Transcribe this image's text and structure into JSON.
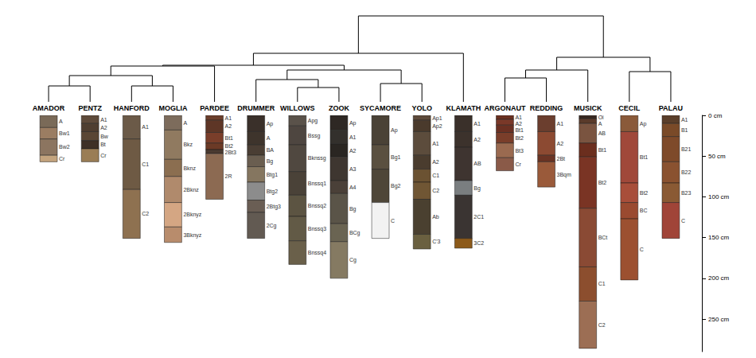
{
  "chart_data": {
    "type": "soil_profiles",
    "ylim": [
      0,
      290
    ],
    "yticks": [
      {
        "value": 0,
        "label": "0 cm"
      },
      {
        "value": 50,
        "label": "50 cm"
      },
      {
        "value": 100,
        "label": "100 cm"
      },
      {
        "value": 150,
        "label": "150 cm"
      },
      {
        "value": 200,
        "label": "200 cm"
      },
      {
        "value": 250,
        "label": "250 cm"
      }
    ],
    "profiles": [
      {
        "name": "AMADOR",
        "horizons": [
          {
            "name": "A",
            "top": 0,
            "bottom": 15,
            "color": "#7a6a58"
          },
          {
            "name": "Bw1",
            "top": 15,
            "bottom": 29,
            "color": "#9b7d62"
          },
          {
            "name": "Bw2",
            "top": 29,
            "bottom": 49,
            "color": "#8c7560"
          },
          {
            "name": "Cr",
            "top": 49,
            "bottom": 57,
            "color": "#c4a47e"
          }
        ]
      },
      {
        "name": "PENTZ",
        "horizons": [
          {
            "name": "A1",
            "top": 0,
            "bottom": 10,
            "color": "#5e4a3a"
          },
          {
            "name": "A2",
            "top": 10,
            "bottom": 20,
            "color": "#4f3e30"
          },
          {
            "name": "Bw",
            "top": 20,
            "bottom": 31,
            "color": "#5a4634"
          },
          {
            "name": "Bt",
            "top": 31,
            "bottom": 41,
            "color": "#3e3026"
          },
          {
            "name": "Cr",
            "top": 41,
            "bottom": 57,
            "color": "#9a7d55"
          }
        ]
      },
      {
        "name": "HANFORD",
        "horizons": [
          {
            "name": "A1",
            "top": 0,
            "bottom": 29,
            "color": "#6b5a48"
          },
          {
            "name": "C1",
            "top": 29,
            "bottom": 91,
            "color": "#6e5a44"
          },
          {
            "name": "C2",
            "top": 91,
            "bottom": 151,
            "color": "#8e7150"
          }
        ]
      },
      {
        "name": "MOGLIA",
        "horizons": [
          {
            "name": "A",
            "top": 0,
            "bottom": 18,
            "color": "#7d6c5c"
          },
          {
            "name": "Bkz",
            "top": 18,
            "bottom": 54,
            "color": "#907a60"
          },
          {
            "name": "Bknz",
            "top": 54,
            "bottom": 75,
            "color": "#8b6e50"
          },
          {
            "name": "2Bknz",
            "top": 75,
            "bottom": 107,
            "color": "#b08a6c"
          },
          {
            "name": "2Bknyz",
            "top": 107,
            "bottom": 137,
            "color": "#d4a683"
          },
          {
            "name": "3Bknyz",
            "top": 137,
            "bottom": 156,
            "color": "#b88c6c"
          }
        ]
      },
      {
        "name": "PARDEE",
        "horizons": [
          {
            "name": "A1",
            "top": 0,
            "bottom": 6,
            "color": "#6b3e2b"
          },
          {
            "name": "A2",
            "top": 6,
            "bottom": 21,
            "color": "#5e3626"
          },
          {
            "name": "Bt1",
            "top": 21,
            "bottom": 34,
            "color": "#7a3e2a"
          },
          {
            "name": "Bt2",
            "top": 34,
            "bottom": 42,
            "color": "#6b3a26"
          },
          {
            "name": "2Bt3",
            "top": 42,
            "bottom": 47,
            "color": "#4a3a30"
          },
          {
            "name": "2R",
            "top": 47,
            "bottom": 103,
            "color": "#8c6a52"
          }
        ]
      },
      {
        "name": "DRUMMER",
        "horizons": [
          {
            "name": "Ap",
            "top": 0,
            "bottom": 20,
            "color": "#3a302a"
          },
          {
            "name": "A",
            "top": 20,
            "bottom": 36,
            "color": "#3e342c"
          },
          {
            "name": "BA",
            "top": 36,
            "bottom": 49,
            "color": "#4a3e34"
          },
          {
            "name": "Bg",
            "top": 49,
            "bottom": 63,
            "color": "#6a5e50"
          },
          {
            "name": "Btg1",
            "top": 63,
            "bottom": 82,
            "color": "#857660"
          },
          {
            "name": "Btg2",
            "top": 82,
            "bottom": 104,
            "color": "#8c8c8c"
          },
          {
            "name": "2Btg3",
            "top": 104,
            "bottom": 119,
            "color": "#6a5e54"
          },
          {
            "name": "2Cg",
            "top": 119,
            "bottom": 151,
            "color": "#625a52"
          }
        ]
      },
      {
        "name": "WILLOWS",
        "horizons": [
          {
            "name": "Apg",
            "top": 0,
            "bottom": 13,
            "color": "#5a524a"
          },
          {
            "name": "Bssg",
            "top": 13,
            "bottom": 36,
            "color": "#4e4640"
          },
          {
            "name": "Bknssg",
            "top": 36,
            "bottom": 69,
            "color": "#504840"
          },
          {
            "name": "Bnssq1",
            "top": 69,
            "bottom": 98,
            "color": "#4a4238"
          },
          {
            "name": "Bnssq2",
            "top": 98,
            "bottom": 124,
            "color": "#5c5442"
          },
          {
            "name": "Bnssq3",
            "top": 124,
            "bottom": 154,
            "color": "#625a46"
          },
          {
            "name": "Bnssq4",
            "top": 154,
            "bottom": 183,
            "color": "#6a604a"
          }
        ]
      },
      {
        "name": "ZOOK",
        "horizons": [
          {
            "name": "Ap",
            "top": 0,
            "bottom": 18,
            "color": "#2e2824"
          },
          {
            "name": "A1",
            "top": 18,
            "bottom": 35,
            "color": "#33302c"
          },
          {
            "name": "A2",
            "top": 35,
            "bottom": 51,
            "color": "#2a2622"
          },
          {
            "name": "A3",
            "top": 51,
            "bottom": 80,
            "color": "#3e3630"
          },
          {
            "name": "A4",
            "top": 80,
            "bottom": 96,
            "color": "#4a4038"
          },
          {
            "name": "Bg",
            "top": 96,
            "bottom": 133,
            "color": "#5a5448"
          },
          {
            "name": "BCg",
            "top": 133,
            "bottom": 155,
            "color": "#6a6452"
          },
          {
            "name": "Cg",
            "top": 155,
            "bottom": 200,
            "color": "#857a62"
          }
        ]
      },
      {
        "name": "SYCAMORE",
        "horizons": [
          {
            "name": "Ap",
            "top": 0,
            "bottom": 36,
            "color": "#4a4236"
          },
          {
            "name": "Bg1",
            "top": 36,
            "bottom": 66,
            "color": "#5a5040"
          },
          {
            "name": "Bg2",
            "top": 66,
            "bottom": 107,
            "color": "#4e4638"
          },
          {
            "name": "C",
            "top": 107,
            "bottom": 151,
            "color": "#f2f2f2"
          }
        ]
      },
      {
        "name": "YOLO",
        "horizons": [
          {
            "name": "Ap1",
            "top": 0,
            "bottom": 6,
            "color": "#5e4a3a"
          },
          {
            "name": "Ap2",
            "top": 6,
            "bottom": 20,
            "color": "#4a3a2c"
          },
          {
            "name": "A1",
            "top": 20,
            "bottom": 49,
            "color": "#5c4c3c"
          },
          {
            "name": "A2",
            "top": 49,
            "bottom": 66,
            "color": "#4a3c2e"
          },
          {
            "name": "C1",
            "top": 66,
            "bottom": 82,
            "color": "#6b5232"
          },
          {
            "name": "C2",
            "top": 82,
            "bottom": 103,
            "color": "#705634"
          },
          {
            "name": "Ab",
            "top": 103,
            "bottom": 146,
            "color": "#4a4030"
          },
          {
            "name": "C'3",
            "top": 146,
            "bottom": 164,
            "color": "#6a6040"
          }
        ]
      },
      {
        "name": "KLAMATH",
        "horizons": [
          {
            "name": "A1",
            "top": 0,
            "bottom": 20,
            "color": "#3a302a"
          },
          {
            "name": "A2",
            "top": 20,
            "bottom": 39,
            "color": "#3c322c"
          },
          {
            "name": "AB",
            "top": 39,
            "bottom": 80,
            "color": "#3e3430"
          },
          {
            "name": "Bg",
            "top": 80,
            "bottom": 98,
            "color": "#7a7e80"
          },
          {
            "name": "2C1",
            "top": 98,
            "bottom": 151,
            "color": "#3a3432"
          },
          {
            "name": "3C2",
            "top": 151,
            "bottom": 163,
            "color": "#8c5a1a"
          }
        ]
      },
      {
        "name": "ARGONAUT",
        "horizons": [
          {
            "name": "A1",
            "top": 0,
            "bottom": 5,
            "color": "#6b3020"
          },
          {
            "name": "A2",
            "top": 5,
            "bottom": 12,
            "color": "#7a3828"
          },
          {
            "name": "Bt1",
            "top": 12,
            "bottom": 21,
            "color": "#6b3022"
          },
          {
            "name": "Bt2",
            "top": 21,
            "bottom": 34,
            "color": "#7a3e2a"
          },
          {
            "name": "Bt3",
            "top": 34,
            "bottom": 52,
            "color": "#9a6a50"
          },
          {
            "name": "Cr",
            "top": 52,
            "bottom": 68,
            "color": "#8a5a48"
          }
        ]
      },
      {
        "name": "REDDING",
        "horizons": [
          {
            "name": "A1",
            "top": 0,
            "bottom": 20,
            "color": "#6b3e2e"
          },
          {
            "name": "A2",
            "top": 20,
            "bottom": 49,
            "color": "#8c4a32"
          },
          {
            "name": "2Bt",
            "top": 49,
            "bottom": 57,
            "color": "#6b3424"
          },
          {
            "name": "3Bqm",
            "top": 57,
            "bottom": 88,
            "color": "#9a5a3a"
          }
        ]
      },
      {
        "name": "MUSICK",
        "horizons": [
          {
            "name": "Oi",
            "top": 0,
            "bottom": 4,
            "color": "#3a2a22"
          },
          {
            "name": "A",
            "top": 4,
            "bottom": 10,
            "color": "#5a3a2a"
          },
          {
            "name": "AB",
            "top": 10,
            "bottom": 34,
            "color": "#7a5440"
          },
          {
            "name": "Bt1",
            "top": 34,
            "bottom": 51,
            "color": "#6b2e1e"
          },
          {
            "name": "Bt2",
            "top": 51,
            "bottom": 114,
            "color": "#7a3424"
          },
          {
            "name": "BCt",
            "top": 114,
            "bottom": 186,
            "color": "#8a4a34"
          },
          {
            "name": "C1",
            "top": 186,
            "bottom": 228,
            "color": "#8c4e2e"
          },
          {
            "name": "C2",
            "top": 228,
            "bottom": 286,
            "color": "#9c6e54"
          }
        ]
      },
      {
        "name": "CECIL",
        "horizons": [
          {
            "name": "Ap",
            "top": 0,
            "bottom": 20,
            "color": "#8a5a3a"
          },
          {
            "name": "Bt1",
            "top": 20,
            "bottom": 83,
            "color": "#a0483a"
          },
          {
            "name": "Bt2",
            "top": 83,
            "bottom": 107,
            "color": "#a84e3a"
          },
          {
            "name": "BC",
            "top": 107,
            "bottom": 127,
            "color": "#9a4a30"
          },
          {
            "name": "C",
            "top": 127,
            "bottom": 202,
            "color": "#9c5030"
          }
        ]
      },
      {
        "name": "PALAU",
        "horizons": [
          {
            "name": "A1",
            "top": 0,
            "bottom": 10,
            "color": "#5a3e2a"
          },
          {
            "name": "B1",
            "top": 10,
            "bottom": 26,
            "color": "#7a4a28"
          },
          {
            "name": "B21",
            "top": 26,
            "bottom": 57,
            "color": "#7e4a2a"
          },
          {
            "name": "B22",
            "top": 57,
            "bottom": 83,
            "color": "#8a5230"
          },
          {
            "name": "B23",
            "top": 83,
            "bottom": 107,
            "color": "#8a5a34"
          },
          {
            "name": "C",
            "top": 107,
            "bottom": 151,
            "color": "#a04438"
          }
        ]
      }
    ],
    "dendrogram": {
      "height": 108,
      "children": [
        {
          "height": 61,
          "children": [
            {
              "height": 46,
              "children": [
                {
                  "height": 45,
                  "children": [
                    {
                      "height": 33,
                      "children": [
                        {
                          "height": 20,
                          "children": [
                            "AMADOR",
                            "PENTZ"
                          ]
                        },
                        {
                          "height": 20,
                          "children": [
                            "HANFORD",
                            "MOGLIA"
                          ]
                        }
                      ]
                    },
                    "PARDEE"
                  ]
                },
                {
                  "height": 40,
                  "children": [
                    {
                      "height": 28,
                      "children": [
                        "DRUMMER",
                        {
                          "height": 18,
                          "children": [
                            "WILLOWS",
                            "ZOOK"
                          ]
                        }
                      ]
                    },
                    {
                      "height": 23,
                      "children": [
                        "SYCAMORE",
                        "YOLO"
                      ]
                    }
                  ]
                }
              ]
            },
            "KLAMATH"
          ]
        },
        {
          "height": 56,
          "children": [
            {
              "height": 40,
              "children": [
                {
                  "height": 30,
                  "children": [
                    "ARGONAUT",
                    "REDDING"
                  ]
                },
                "MUSICK"
              ]
            },
            {
              "height": 38,
              "children": [
                "CECIL",
                "PALAU"
              ]
            }
          ]
        }
      ]
    }
  }
}
